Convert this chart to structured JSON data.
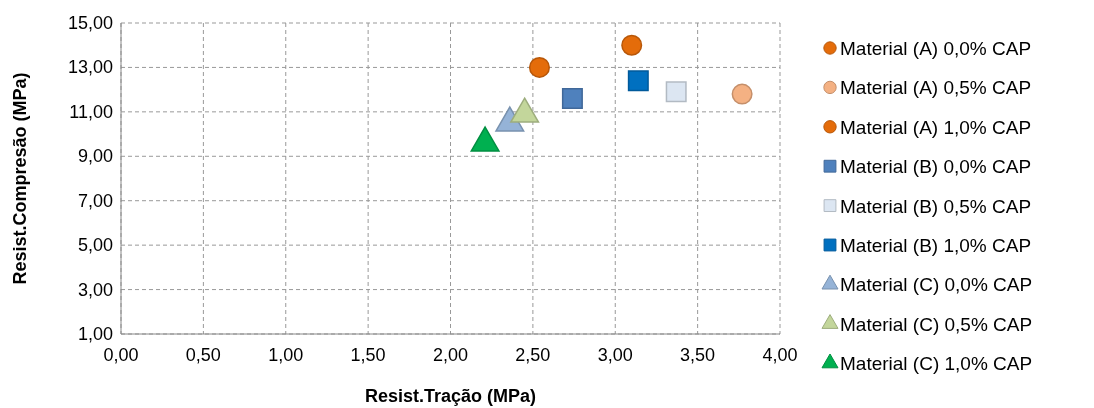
{
  "chart_data": {
    "type": "scatter",
    "xlabel": "Resist.Tração (MPa)",
    "ylabel": "Resist.Compresão (MPa)",
    "xlim": [
      0,
      4
    ],
    "xticks": [
      {
        "value": 0,
        "label": "0,00"
      },
      {
        "value": 0.5,
        "label": "0,50"
      },
      {
        "value": 1,
        "label": "1,00"
      },
      {
        "value": 1.5,
        "label": "1,50"
      },
      {
        "value": 2,
        "label": "2,00"
      },
      {
        "value": 2.5,
        "label": "2,50"
      },
      {
        "value": 3,
        "label": "3,00"
      },
      {
        "value": 3.5,
        "label": "3,50"
      },
      {
        "value": 4,
        "label": "4,00"
      }
    ],
    "ylim": [
      1,
      15
    ],
    "yticks": [
      {
        "value": 1,
        "label": "1,00"
      },
      {
        "value": 3,
        "label": "3,00"
      },
      {
        "value": 5,
        "label": "5,00"
      },
      {
        "value": 7,
        "label": "7,00"
      },
      {
        "value": 9,
        "label": "9,00"
      },
      {
        "value": 11,
        "label": "11,00"
      },
      {
        "value": 13,
        "label": "13,00"
      },
      {
        "value": 15,
        "label": "15,00"
      }
    ],
    "grid": true,
    "legend": "right",
    "series": [
      {
        "name": "Material (A) 0,0% CAP",
        "marker": "circle",
        "color": "#e46c0a",
        "x": [
          2.54
        ],
        "values": [
          13.0
        ]
      },
      {
        "name": "Material (A) 0,5% CAP",
        "marker": "circle",
        "color": "#f4b183",
        "x": [
          3.77
        ],
        "values": [
          11.8
        ]
      },
      {
        "name": "Material (A) 1,0% CAP",
        "marker": "circle",
        "color": "#e46c0a",
        "x": [
          3.1
        ],
        "values": [
          14.0
        ]
      },
      {
        "name": "Material (B) 0,0% CAP",
        "marker": "square",
        "color": "#4f81bd",
        "x": [
          2.74
        ],
        "values": [
          11.6
        ]
      },
      {
        "name": "Material (B) 0,5% CAP",
        "marker": "square",
        "color": "#dce6f2",
        "x": [
          3.37
        ],
        "values": [
          11.9
        ]
      },
      {
        "name": "Material (B) 1,0% CAP",
        "marker": "square",
        "color": "#0070c0",
        "x": [
          3.14
        ],
        "values": [
          12.4
        ]
      },
      {
        "name": "Material (C) 0,0% CAP",
        "marker": "triangle",
        "color": "#95b3d7",
        "x": [
          2.36
        ],
        "values": [
          10.5
        ]
      },
      {
        "name": "Material (C) 0,5% CAP",
        "marker": "triangle",
        "color": "#c3d69b",
        "x": [
          2.45
        ],
        "values": [
          10.9
        ]
      },
      {
        "name": "Material (C) 1,0% CAP",
        "marker": "triangle",
        "color": "#00b050",
        "x": [
          2.21
        ],
        "values": [
          9.6
        ]
      }
    ]
  }
}
